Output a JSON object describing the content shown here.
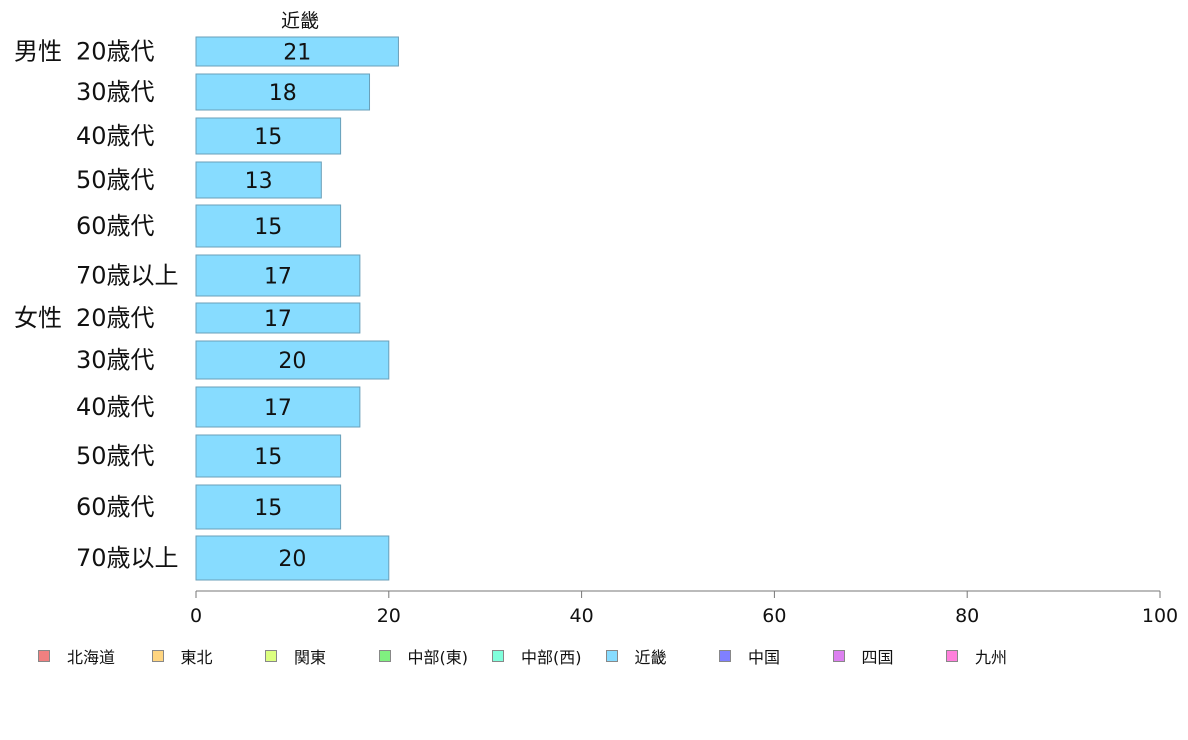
{
  "chart_data": {
    "type": "bar",
    "orientation": "horizontal",
    "series_title": "近畿",
    "groups": [
      {
        "label": "男性",
        "categories": [
          "20歳代",
          "30歳代",
          "40歳代",
          "50歳代",
          "60歳代",
          "70歳以上"
        ],
        "values": [
          21,
          18,
          15,
          13,
          15,
          17
        ]
      },
      {
        "label": "女性",
        "categories": [
          "20歳代",
          "30歳代",
          "40歳代",
          "50歳代",
          "60歳代",
          "70歳以上"
        ],
        "values": [
          17,
          20,
          17,
          15,
          15,
          20
        ]
      }
    ],
    "xlim": [
      0,
      100
    ],
    "xticks": [
      0,
      20,
      40,
      60,
      80,
      100
    ],
    "bar_color": "#87dcff",
    "grid": false,
    "legend_position": "bottom",
    "legend": [
      {
        "name": "北海道",
        "color": "#f08080"
      },
      {
        "name": "東北",
        "color": "#ffd580"
      },
      {
        "name": "関東",
        "color": "#dcff80"
      },
      {
        "name": "中部(東)",
        "color": "#80f080"
      },
      {
        "name": "中部(西)",
        "color": "#80ffdc"
      },
      {
        "name": "近畿",
        "color": "#87dcff"
      },
      {
        "name": "中国",
        "color": "#8080ff"
      },
      {
        "name": "四国",
        "color": "#dc80f0"
      },
      {
        "name": "九州",
        "color": "#ff80dc"
      }
    ]
  }
}
